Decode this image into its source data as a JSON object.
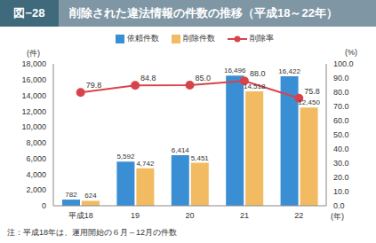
{
  "chart_data": {
    "type": "bar",
    "figure_label": "図−28",
    "title": "削除された違法情報の件数の推移（平成18～22年）",
    "y_label": "(件)",
    "y2_label": "(%)",
    "x_label": "(年)",
    "note": "注：平成18年は、運用開始の６月～12月の件数",
    "categories": [
      "平成18",
      "19",
      "20",
      "21",
      "22"
    ],
    "series": [
      {
        "name": "依頼件数",
        "type": "bar",
        "color": "#3a8fd4",
        "values": [
          782,
          5592,
          6414,
          16496,
          16422
        ],
        "value_labels": [
          "782",
          "5,592",
          "6,414",
          "16,496",
          "16,422"
        ]
      },
      {
        "name": "削除件数",
        "type": "bar",
        "color": "#f2bb62",
        "values": [
          624,
          4742,
          5451,
          14518,
          12450
        ],
        "value_labels": [
          "624",
          "4,742",
          "5,451",
          "14,518",
          "12,450"
        ]
      },
      {
        "name": "削除率",
        "type": "line",
        "axis": "y2",
        "color": "#d8434b",
        "marker": "circle",
        "values": [
          79.8,
          84.8,
          85.0,
          88.0,
          75.8
        ],
        "value_labels": [
          "79.8",
          "84.8",
          "85.0",
          "88.0",
          "75.8"
        ]
      }
    ],
    "ylim": [
      0,
      18000
    ],
    "yticks": [
      0,
      {
        "value": 2000,
        "label": "2,000"
      },
      {
        "value": 4000,
        "label": "4,000"
      },
      {
        "value": 6000,
        "label": "6,000"
      },
      {
        "value": 8000,
        "label": "8,000"
      },
      {
        "value": 10000,
        "label": "10,000"
      },
      {
        "value": 12000,
        "label": "12,000"
      },
      {
        "value": 14000,
        "label": "14,000"
      },
      {
        "value": 16000,
        "label": "16,000"
      },
      {
        "value": 18000,
        "label": "18,000"
      }
    ],
    "y2lim": [
      0,
      100
    ],
    "y2ticks": [
      {
        "value": 0,
        "label": "0.0"
      },
      {
        "value": 10,
        "label": "10.0"
      },
      {
        "value": 20,
        "label": "20.0"
      },
      {
        "value": 30,
        "label": "30.0"
      },
      {
        "value": 40,
        "label": "40.0"
      },
      {
        "value": 50,
        "label": "50.0"
      },
      {
        "value": 60,
        "label": "60.0"
      },
      {
        "value": 70,
        "label": "70.0"
      },
      {
        "value": 80,
        "label": "80.0"
      },
      {
        "value": 90,
        "label": "90.0"
      },
      {
        "value": 100,
        "label": "100.0"
      }
    ],
    "data_labels": true,
    "grid": false
  }
}
